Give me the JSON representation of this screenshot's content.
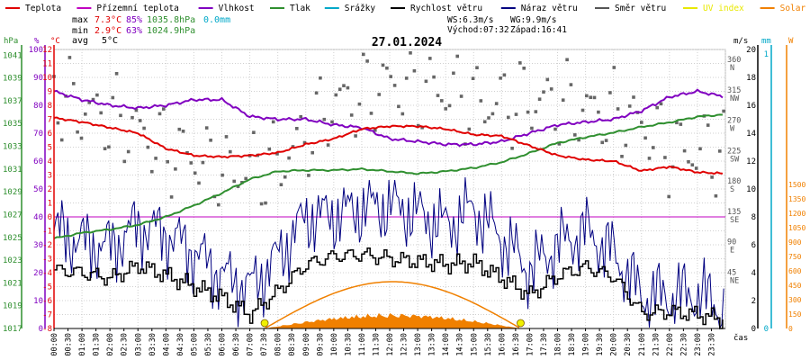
{
  "legend": [
    {
      "key": "temp",
      "label": "Teplota",
      "color": "#e00000"
    },
    {
      "key": "feels",
      "label": "Přízemní teplota",
      "color": "#c000c0"
    },
    {
      "key": "humidity",
      "label": "Vlhkost",
      "color": "#8000c0"
    },
    {
      "key": "pressure",
      "label": "Tlak",
      "color": "#2f8f2f"
    },
    {
      "key": "precip",
      "label": "Srážky",
      "color": "#00a8c8"
    },
    {
      "key": "wind",
      "label": "Rychlost větru",
      "color": "#000000"
    },
    {
      "key": "gust",
      "label": "Náraz větru",
      "color": "#000080"
    },
    {
      "key": "dir",
      "label": "Směr větru",
      "color": "#555555"
    },
    {
      "key": "uv",
      "label": "UV index",
      "color": "#e8e800"
    },
    {
      "key": "solar",
      "label": "Solar",
      "color": "#f08000"
    }
  ],
  "stats": {
    "max_label": "max",
    "max_temp": "7.3°C",
    "max_hum": "85%",
    "max_press": "1035.8hPa",
    "max_precip": "0.0mm",
    "min_label": "min",
    "min_temp": "2.9°C",
    "min_hum": "63%",
    "min_press": "1024.9hPa",
    "avg_label": "avg",
    "avg_temp": "5°C"
  },
  "info": {
    "ws": "WS:6.3m/s",
    "wg": "WG:9.9m/s",
    "sunrise": "Východ:07:32",
    "sunset": "Západ:16:41"
  },
  "title": "27.01.2024",
  "colors": {
    "temp": "#e00000",
    "humidity": "#8000c0",
    "pressure": "#2f8f2f",
    "wind": "#000000",
    "gust": "#000080",
    "dir": "#666666",
    "solar": "#f08000",
    "frost": "#c000c0",
    "uv": "#f0f000"
  },
  "chart_data": {
    "type": "line",
    "axis_units": {
      "hPa": "hPa",
      "pct": "%",
      "temp": "°C",
      "ms": "m/s",
      "mm": "mm",
      "w": "W",
      "time": "čas"
    },
    "x_ticks": [
      "00:00",
      "00:30",
      "01:00",
      "01:30",
      "02:00",
      "02:30",
      "03:00",
      "03:30",
      "04:00",
      "04:30",
      "05:00",
      "05:30",
      "06:00",
      "06:30",
      "07:00",
      "07:30",
      "08:00",
      "08:30",
      "09:00",
      "09:30",
      "10:00",
      "10:30",
      "11:00",
      "11:30",
      "12:00",
      "12:30",
      "13:00",
      "13:30",
      "14:00",
      "14:30",
      "15:00",
      "15:30",
      "16:00",
      "16:30",
      "17:00",
      "17:30",
      "18:00",
      "18:30",
      "19:00",
      "19:30",
      "20:00",
      "20:30",
      "21:00",
      "21:30",
      "22:00",
      "22:30",
      "23:00",
      "23:30"
    ],
    "pressure_ticks": [
      1041,
      1039,
      1037,
      1035,
      1033,
      1031,
      1029,
      1027,
      1025,
      1023,
      1021,
      1019,
      1017
    ],
    "humidity_ticks": [
      100,
      90,
      80,
      70,
      60,
      50,
      40,
      30,
      20,
      10,
      0
    ],
    "temp_ticks": [
      12,
      11,
      10,
      9,
      8,
      7,
      6,
      5,
      4,
      3,
      2,
      1,
      0,
      -1,
      -2,
      -3,
      -4,
      -5,
      -6,
      -7,
      -8
    ],
    "wind_ticks": [
      20,
      18,
      16,
      14,
      12,
      10,
      8,
      6,
      4,
      2,
      0
    ],
    "dir_ticks": [
      {
        "deg": "360",
        "dir": "N"
      },
      {
        "deg": "315",
        "dir": "NW"
      },
      {
        "deg": "270",
        "dir": "W"
      },
      {
        "deg": "225",
        "dir": "SW"
      },
      {
        "deg": "180",
        "dir": "S"
      },
      {
        "deg": "135",
        "dir": "SE"
      },
      {
        "deg": "90",
        "dir": "E"
      },
      {
        "deg": "45",
        "dir": "NE"
      }
    ],
    "mm_ticks": [
      1,
      0
    ],
    "solar_ticks": [
      1500,
      1350,
      1200,
      1050,
      900,
      750,
      600,
      450,
      300,
      150,
      0
    ],
    "sunrise_hour": 7.53,
    "sunset_hour": 16.68,
    "temp_hours": [
      0,
      1,
      2,
      3,
      4,
      5,
      6,
      7,
      8,
      9,
      10,
      11,
      12,
      13,
      14,
      15,
      16,
      17,
      18,
      19,
      20,
      21,
      22,
      23,
      24
    ],
    "temp_values": [
      7.1,
      6.8,
      6.4,
      6.0,
      4.9,
      4.4,
      4.3,
      4.4,
      4.6,
      5.2,
      5.6,
      6.3,
      6.5,
      6.5,
      6.3,
      5.9,
      5.8,
      5.1,
      4.4,
      4.1,
      4.0,
      3.3,
      3.6,
      3.2,
      3.1
    ],
    "humidity_values": [
      85,
      82,
      80,
      79,
      80,
      82,
      82,
      76,
      75,
      75,
      73,
      72,
      68,
      67,
      66,
      66,
      67,
      70,
      73,
      74,
      75,
      78,
      83,
      85,
      83
    ],
    "pressure_values": [
      1024.9,
      1025.4,
      1025.7,
      1026.1,
      1026.8,
      1027.8,
      1028.9,
      1030.1,
      1030.8,
      1030.9,
      1030.9,
      1031.0,
      1030.8,
      1030.6,
      1030.8,
      1031.1,
      1031.6,
      1032.4,
      1033.3,
      1033.8,
      1034.2,
      1034.7,
      1035.1,
      1035.6,
      1035.8
    ],
    "wind_values": [
      4.2,
      4.0,
      3.6,
      4.5,
      3.8,
      3.0,
      2.2,
      1.0,
      2.7,
      4.6,
      5.2,
      5.3,
      5.0,
      4.8,
      4.6,
      4.7,
      3.6,
      2.4,
      3.8,
      4.4,
      3.7,
      1.1,
      1.2,
      1.0,
      0.6
    ],
    "gust_values": [
      7.0,
      6.2,
      5.8,
      7.4,
      6.8,
      5.5,
      3.8,
      2.9,
      5.1,
      8.0,
      8.1,
      8.6,
      8.8,
      8.2,
      7.4,
      8.6,
      6.5,
      4.2,
      6.0,
      7.0,
      5.4,
      2.4,
      2.3,
      2.5,
      1.4
    ],
    "dir_values": [
      315,
      290,
      280,
      260,
      230,
      220,
      195,
      205,
      210,
      250,
      300,
      310,
      330,
      320,
      320,
      300,
      300,
      305,
      300,
      290,
      285,
      270,
      230,
      230,
      230
    ],
    "solar_peak": 150
  }
}
